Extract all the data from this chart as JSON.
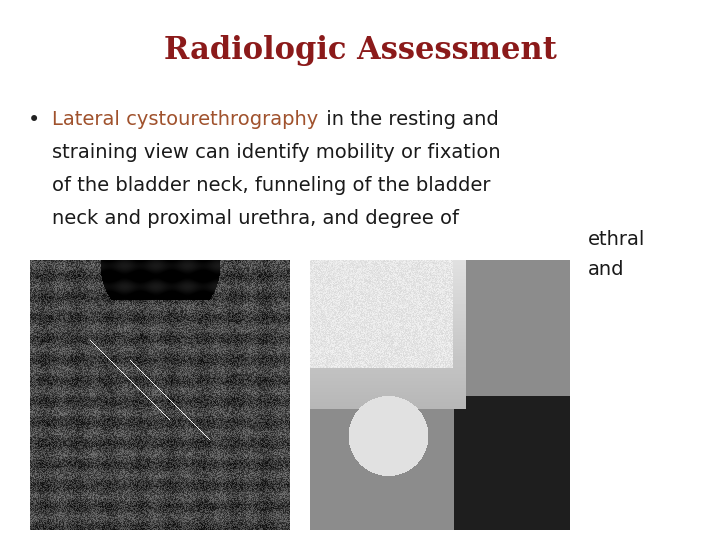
{
  "title": "Radiologic Assessment",
  "title_color": "#8B1A1A",
  "title_fontsize": 22,
  "background_color": "#FFFFFF",
  "bullet_color": "#222222",
  "bullet_fontsize": 14,
  "highlight_color": "#A0522D",
  "normal_text_color": "#1A1A1A",
  "body_line1_highlight": "Lateral cystourethrography",
  "body_line1_rest": " in the resting and",
  "body_line2": "straining view can identify mobility or fixation",
  "body_line3": "of the bladder neck, funneling of the bladder",
  "body_line4": "neck and proximal urethra, and degree of",
  "overlap_text1": "ethral",
  "overlap_text2": "and",
  "figsize": [
    7.2,
    5.4
  ],
  "dpi": 100
}
